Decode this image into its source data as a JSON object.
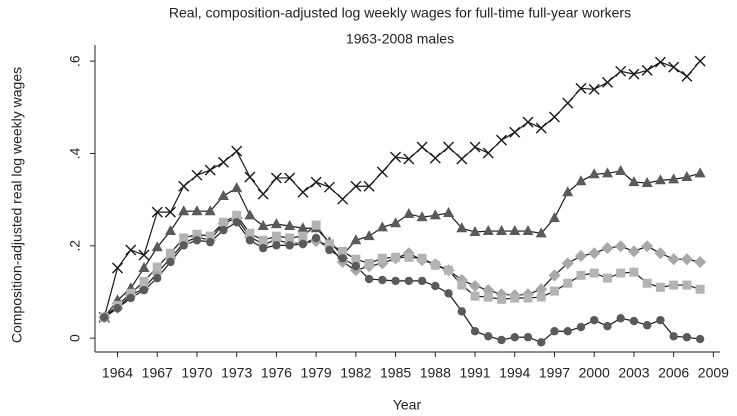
{
  "chart_data": {
    "type": "line",
    "title": "Real, composition-adjusted log weekly wages for full-time full-year workers",
    "subtitle": "1963-2008 males",
    "x_label": "Year",
    "y_label": "Composition-adjusted real log weekly wages",
    "x": [
      1963,
      1964,
      1965,
      1966,
      1967,
      1968,
      1969,
      1970,
      1971,
      1972,
      1973,
      1974,
      1975,
      1976,
      1977,
      1978,
      1979,
      1980,
      1981,
      1982,
      1983,
      1984,
      1985,
      1986,
      1987,
      1988,
      1989,
      1990,
      1991,
      1992,
      1993,
      1994,
      1995,
      1996,
      1997,
      1998,
      1999,
      2000,
      2001,
      2002,
      2003,
      2004,
      2005,
      2006,
      2007,
      2008
    ],
    "series": [
      {
        "color": "#1a1a1a",
        "marker": "x",
        "values": [
          0.045,
          0.152,
          0.191,
          0.18,
          0.273,
          0.273,
          0.329,
          0.353,
          0.364,
          0.381,
          0.405,
          0.349,
          0.312,
          0.347,
          0.347,
          0.316,
          0.338,
          0.327,
          0.301,
          0.329,
          0.329,
          0.36,
          0.392,
          0.388,
          0.414,
          0.39,
          0.414,
          0.388,
          0.414,
          0.401,
          0.429,
          0.446,
          0.468,
          0.455,
          0.479,
          0.509,
          0.541,
          0.539,
          0.554,
          0.578,
          0.572,
          0.58,
          0.598,
          0.587,
          0.567,
          0.6
        ]
      },
      {
        "color": "#5a5a5a",
        "marker": "triangle",
        "values": [
          0.045,
          0.082,
          0.108,
          0.152,
          0.197,
          0.232,
          0.275,
          0.275,
          0.275,
          0.308,
          0.325,
          0.266,
          0.243,
          0.247,
          0.243,
          0.238,
          0.238,
          0.208,
          0.18,
          0.212,
          0.221,
          0.24,
          0.249,
          0.269,
          0.262,
          0.266,
          0.271,
          0.238,
          0.23,
          0.232,
          0.232,
          0.232,
          0.232,
          0.227,
          0.26,
          0.316,
          0.34,
          0.355,
          0.357,
          0.362,
          0.338,
          0.336,
          0.342,
          0.344,
          0.349,
          0.357
        ]
      },
      {
        "color": "#a8a8a8",
        "marker": "diamond",
        "values": [
          0.045,
          0.065,
          0.093,
          0.108,
          0.141,
          0.173,
          0.206,
          0.219,
          0.212,
          0.249,
          0.26,
          0.219,
          0.204,
          0.212,
          0.206,
          0.206,
          0.21,
          0.201,
          0.165,
          0.147,
          0.156,
          0.162,
          0.173,
          0.184,
          0.169,
          0.16,
          0.147,
          0.126,
          0.113,
          0.104,
          0.095,
          0.093,
          0.095,
          0.106,
          0.136,
          0.162,
          0.178,
          0.184,
          0.195,
          0.199,
          0.188,
          0.199,
          0.184,
          0.171,
          0.171,
          0.165
        ]
      },
      {
        "color": "#b4b4b4",
        "marker": "square",
        "values": [
          0.045,
          0.071,
          0.097,
          0.123,
          0.154,
          0.184,
          0.217,
          0.225,
          0.221,
          0.251,
          0.266,
          0.227,
          0.212,
          0.221,
          0.217,
          0.221,
          0.245,
          0.204,
          0.188,
          0.171,
          0.162,
          0.173,
          0.175,
          0.175,
          0.173,
          0.158,
          0.147,
          0.115,
          0.091,
          0.089,
          0.084,
          0.087,
          0.087,
          0.089,
          0.102,
          0.119,
          0.136,
          0.141,
          0.13,
          0.141,
          0.143,
          0.119,
          0.11,
          0.115,
          0.115,
          0.106
        ]
      },
      {
        "color": "#5a5a5a",
        "marker": "circle",
        "values": [
          0.045,
          0.065,
          0.087,
          0.104,
          0.13,
          0.165,
          0.201,
          0.212,
          0.208,
          0.234,
          0.251,
          0.212,
          0.195,
          0.201,
          0.201,
          0.204,
          0.217,
          0.191,
          0.173,
          0.156,
          0.128,
          0.126,
          0.124,
          0.124,
          0.124,
          0.113,
          0.097,
          0.058,
          0.015,
          0.004,
          -0.004,
          0.002,
          0.002,
          -0.009,
          0.015,
          0.015,
          0.024,
          0.039,
          0.026,
          0.043,
          0.037,
          0.028,
          0.039,
          0.004,
          0.002,
          -0.002
        ]
      }
    ],
    "line_color": "#1a1a1a",
    "xlim": [
      1962.3,
      2009.5
    ],
    "xticks": [
      1964,
      1967,
      1970,
      1973,
      1976,
      1979,
      1982,
      1985,
      1988,
      1991,
      1994,
      1997,
      2000,
      2003,
      2006,
      2009
    ],
    "ylim": [
      -0.03,
      0.635
    ],
    "yticks": [
      0,
      {
        "value": 0.2,
        "label": ".2"
      },
      {
        "value": 0.4,
        "label": ".4"
      },
      {
        "value": 0.6,
        "label": ".6"
      }
    ]
  }
}
